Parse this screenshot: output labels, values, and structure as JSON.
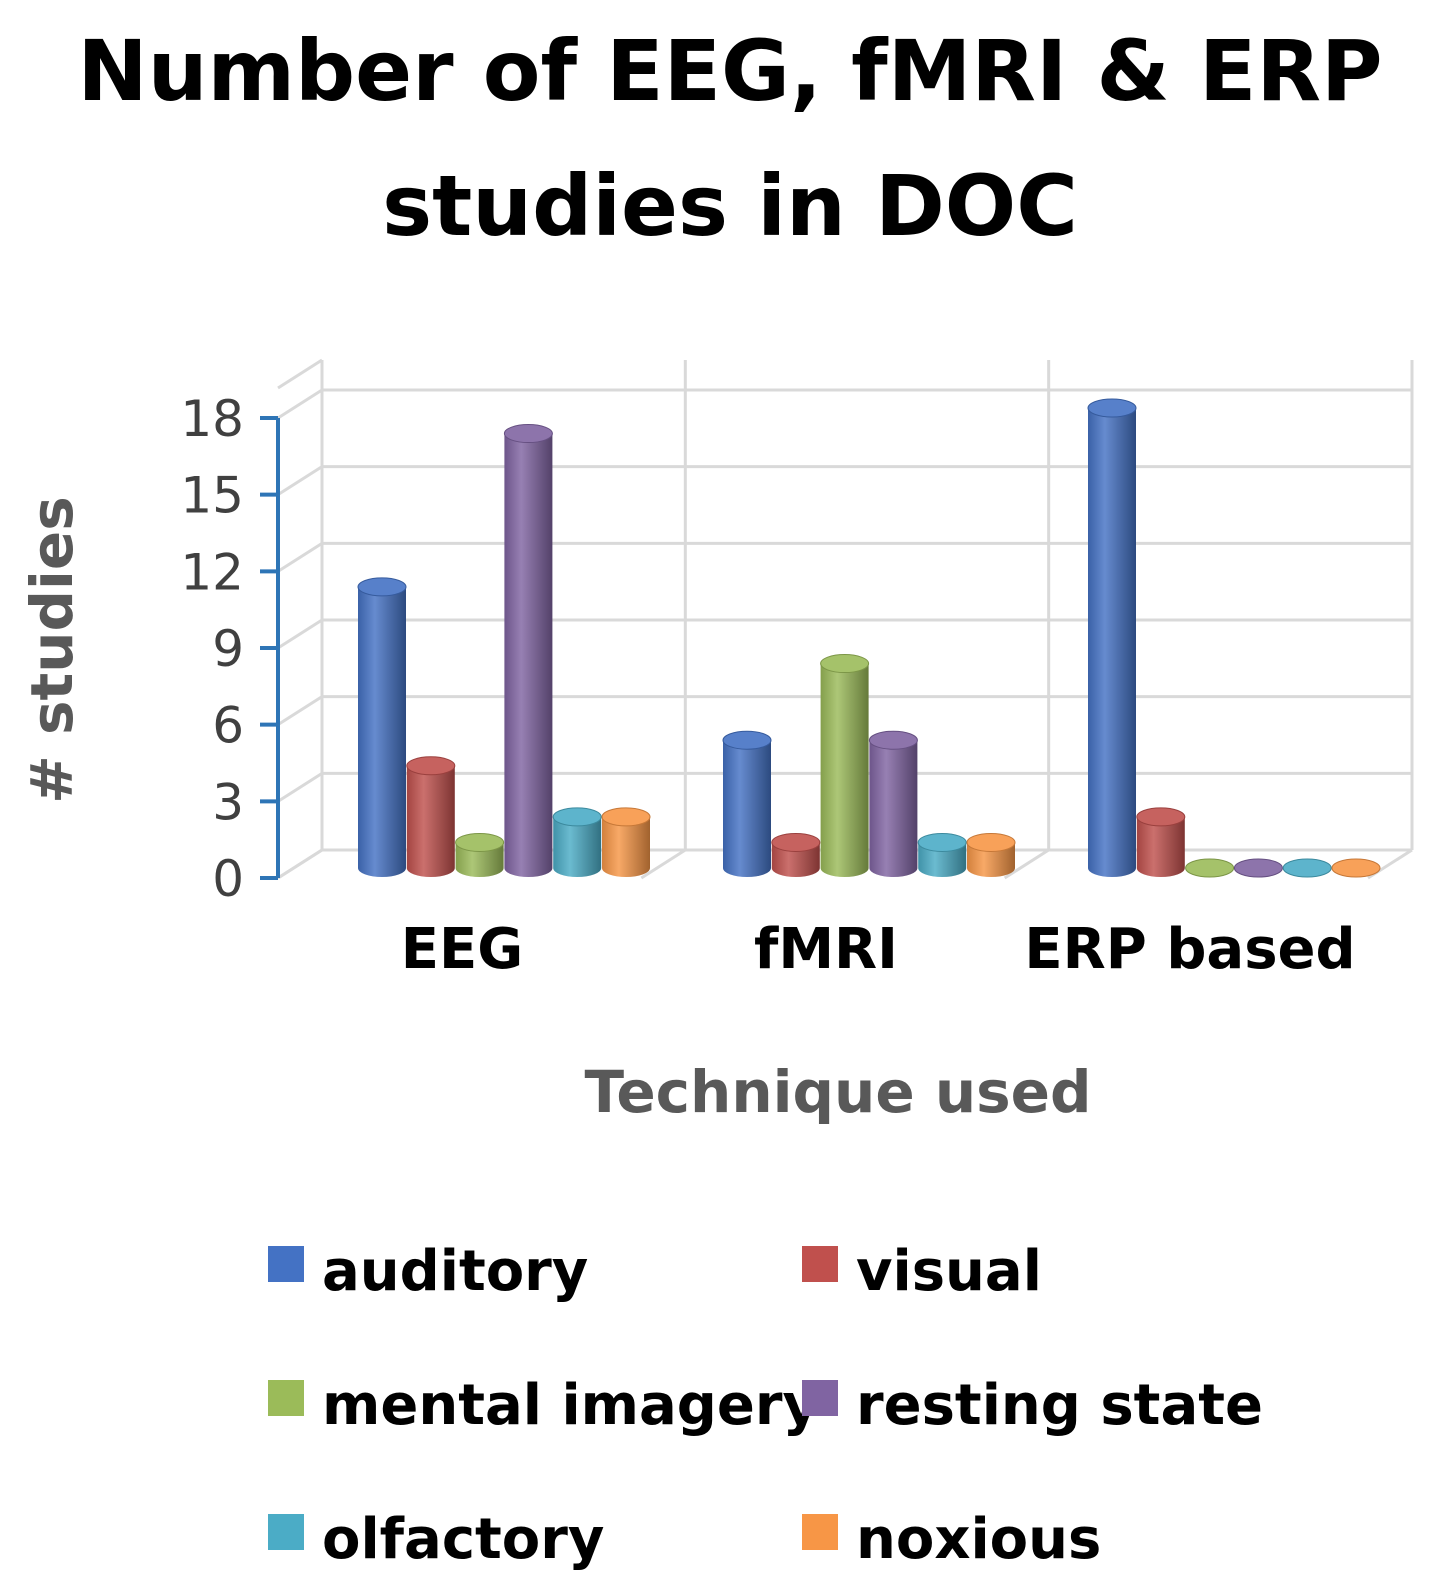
{
  "chart_data": {
    "type": "bar",
    "title_lines": [
      "Number of EEG, fMRI & ERP",
      "studies in DOC"
    ],
    "xlabel": "Technique used",
    "ylabel": "# studies",
    "ylim": [
      0,
      18
    ],
    "yticks": [
      "0",
      "3",
      "6",
      "9",
      "12",
      "15",
      "18"
    ],
    "yticks_values": [
      0,
      3,
      6,
      9,
      12,
      15,
      18
    ],
    "grid": true,
    "style": "3d-cylinder",
    "legend_position": "bottom",
    "categories": [
      "EEG",
      "fMRI",
      "ERP based"
    ],
    "series": [
      {
        "name": "auditory",
        "color": "#4472c4",
        "values": [
          11,
          5,
          18
        ]
      },
      {
        "name": "visual",
        "color": "#c0504d",
        "values": [
          4,
          1,
          2
        ]
      },
      {
        "name": "mental imagery",
        "color": "#9bbb59",
        "values": [
          1,
          8,
          0
        ]
      },
      {
        "name": "resting state",
        "color": "#8064a2",
        "values": [
          17,
          5,
          0
        ]
      },
      {
        "name": "olfactory",
        "color": "#4bacc6",
        "values": [
          2,
          1,
          0
        ]
      },
      {
        "name": "noxious",
        "color": "#f79646",
        "values": [
          2,
          1,
          0
        ]
      }
    ]
  }
}
